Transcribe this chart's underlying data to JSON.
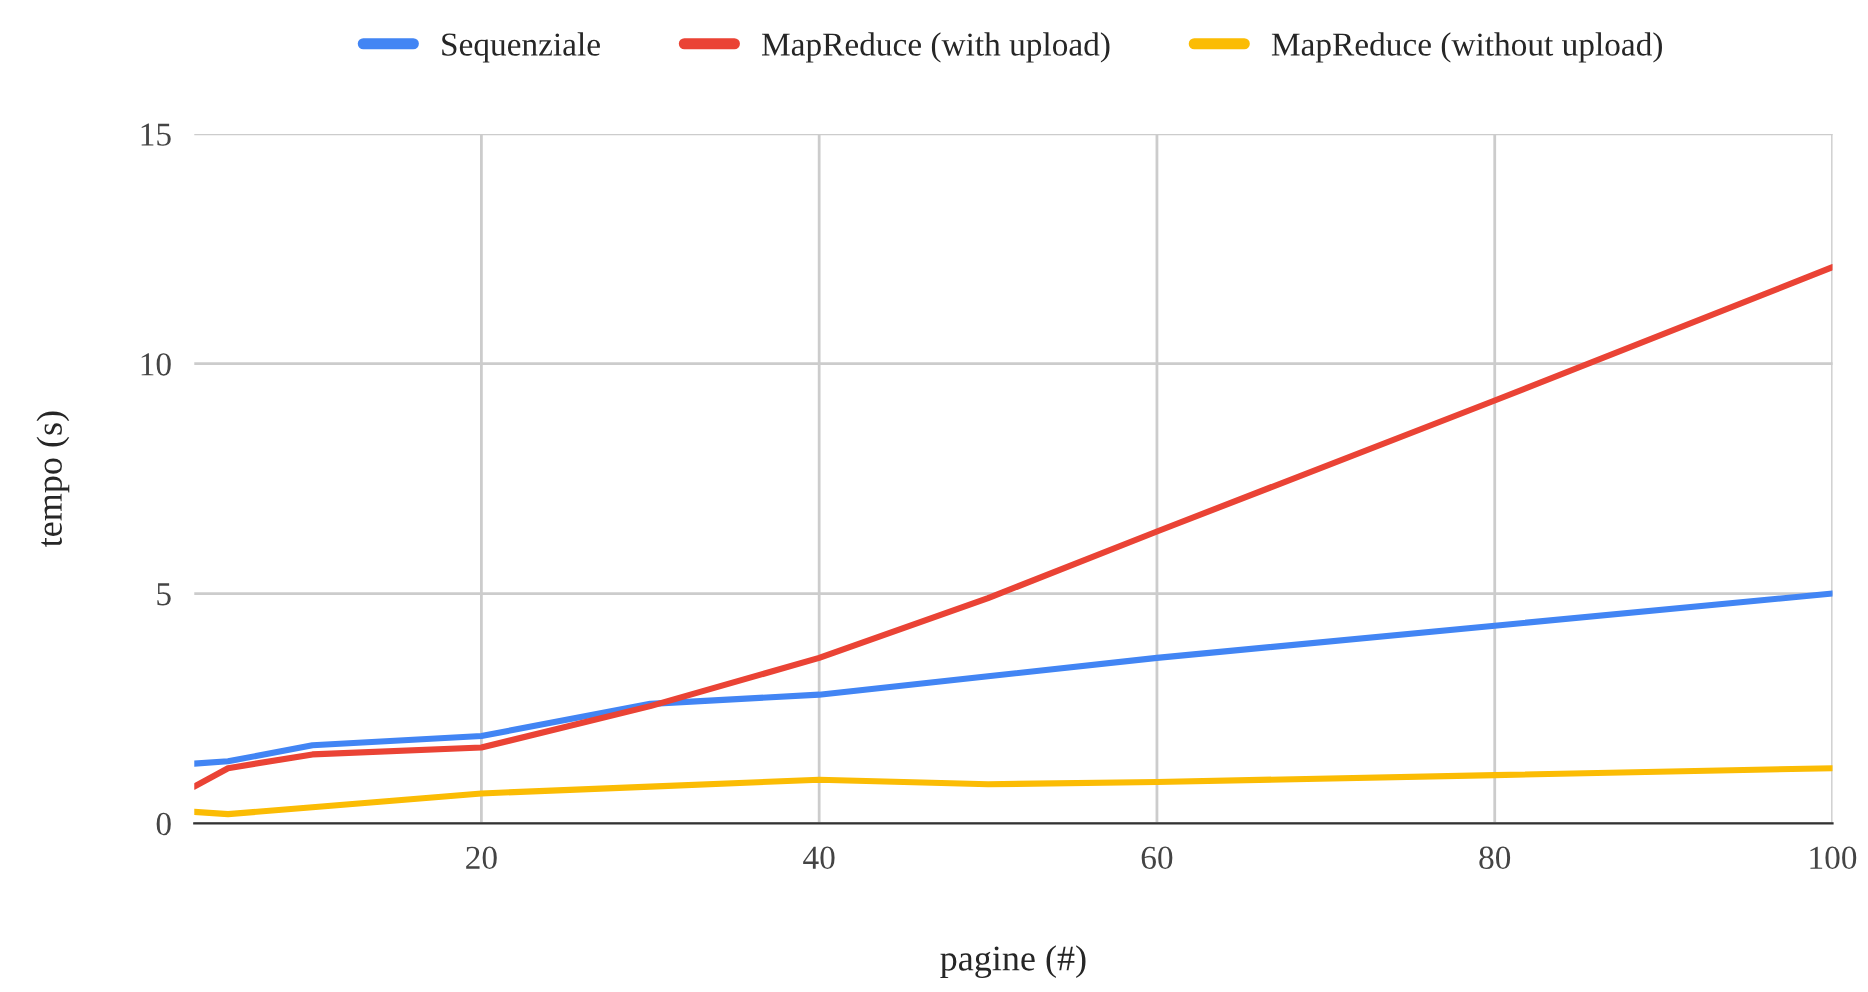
{
  "chart_data": {
    "type": "line",
    "xlabel": "pagine (#)",
    "ylabel": "tempo (s)",
    "x": [
      3,
      5,
      10,
      20,
      30,
      40,
      50,
      60,
      80,
      100
    ],
    "series": [
      {
        "name": "Sequenziale",
        "color": "#4285f4",
        "values": [
          1.3,
          1.35,
          1.7,
          1.9,
          2.6,
          2.8,
          3.2,
          3.6,
          4.3,
          5.0
        ]
      },
      {
        "name": "MapReduce (with upload)",
        "color": "#ea4335",
        "values": [
          0.8,
          1.2,
          1.5,
          1.65,
          2.55,
          3.6,
          4.9,
          6.35,
          9.2,
          12.1
        ]
      },
      {
        "name": "MapReduce (without upload)",
        "color": "#fbbc04",
        "values": [
          0.25,
          0.2,
          0.35,
          0.65,
          0.8,
          0.95,
          0.85,
          0.9,
          1.05,
          1.2
        ]
      }
    ],
    "xlim": [
      3,
      100
    ],
    "xticks": [
      20,
      40,
      60,
      80,
      100
    ],
    "ylim": [
      0,
      15
    ],
    "yticks": [
      0,
      5,
      10,
      15
    ],
    "grid": true,
    "legend": "top",
    "marker": "none",
    "line_style": "solid"
  }
}
